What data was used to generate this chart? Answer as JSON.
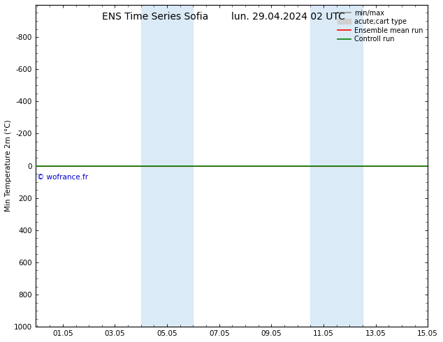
{
  "title": "ENS Time Series Sofia",
  "title2": "lun. 29.04.2024 02 UTC",
  "ylabel": "Min Temperature 2m (°C)",
  "xlim": [
    0.0,
    15.05
  ],
  "ylim_bottom": 1000,
  "ylim_top": -1000,
  "yticks": [
    -800,
    -600,
    -400,
    -200,
    0,
    200,
    400,
    600,
    800,
    1000
  ],
  "xticks": [
    1.05,
    3.05,
    5.05,
    7.05,
    9.05,
    11.05,
    13.05,
    15.05
  ],
  "xticklabels": [
    "01.05",
    "03.05",
    "05.05",
    "07.05",
    "09.05",
    "11.05",
    "13.05",
    "15.05"
  ],
  "shaded_regions": [
    [
      4.05,
      5.05
    ],
    [
      5.55,
      6.05
    ],
    [
      10.55,
      11.55
    ],
    [
      12.05,
      12.55
    ]
  ],
  "shaded_color": "#daeaf7",
  "green_line_color": "#008000",
  "red_line_color": "#ff0000",
  "copyright_text": "© wofrance.fr",
  "copyright_color": "#0000cc",
  "background_color": "#ffffff",
  "legend_items": [
    {
      "label": "min/max",
      "color": "#909090",
      "lw": 1.2,
      "style": "line"
    },
    {
      "label": "acute;cart type",
      "color": "#d0d0d0",
      "lw": 6,
      "style": "box"
    },
    {
      "label": "Ensemble mean run",
      "color": "#ff0000",
      "lw": 1.2,
      "style": "line"
    },
    {
      "label": "Controll run",
      "color": "#008000",
      "lw": 1.2,
      "style": "line"
    }
  ],
  "title_fontsize": 10,
  "tick_fontsize": 7.5,
  "ylabel_fontsize": 7.5
}
